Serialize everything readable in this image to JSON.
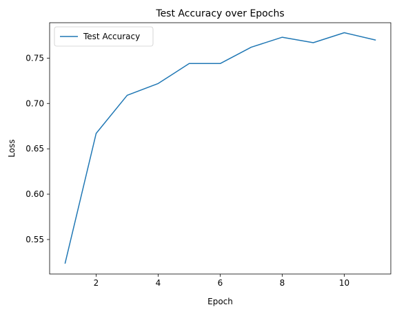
{
  "chart_data": {
    "type": "line",
    "title": "Test Accuracy over Epochs",
    "xlabel": "Epoch",
    "ylabel": "Loss",
    "xlim": [
      0.5,
      11.5
    ],
    "ylim": [
      0.512,
      0.789
    ],
    "xticks": [
      2,
      4,
      6,
      8,
      10
    ],
    "yticks": [
      0.55,
      0.6,
      0.65,
      0.7,
      0.75
    ],
    "grid": false,
    "legend_position": "upper-left",
    "series": [
      {
        "name": "Test Accuracy",
        "color": "#1f77b4",
        "x": [
          1,
          2,
          3,
          4,
          5,
          6,
          7,
          8,
          9,
          10,
          11
        ],
        "y": [
          0.524,
          0.667,
          0.709,
          0.722,
          0.744,
          0.744,
          0.762,
          0.773,
          0.767,
          0.778,
          0.77
        ]
      }
    ]
  }
}
